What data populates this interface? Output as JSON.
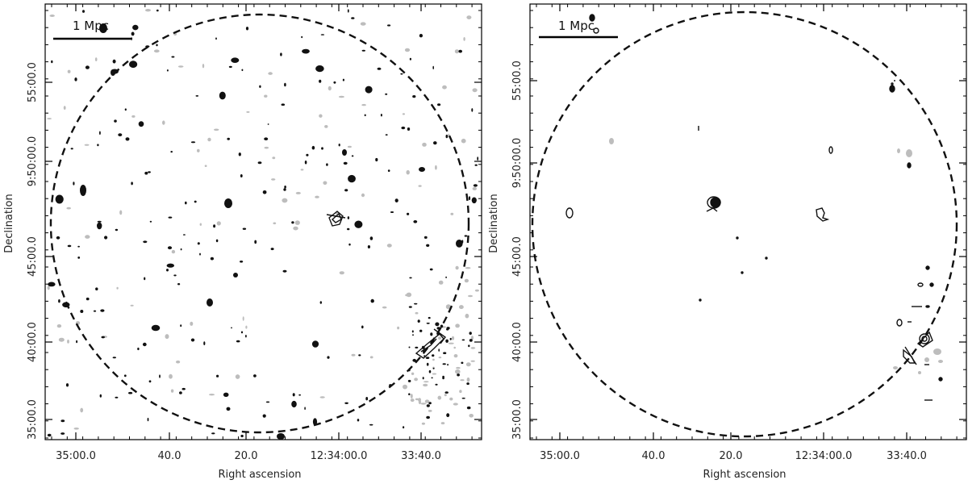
{
  "chart_data": [
    {
      "type": "scatter",
      "panel": "left",
      "title": "",
      "xlabel": "Right ascension",
      "ylabel": "Declination",
      "x_tick_labels": [
        "35:00.0",
        "40.0",
        "20.0",
        "12:34:00.0",
        "33:40.0"
      ],
      "y_tick_labels": [
        "55:00.0",
        "9:50:00.0",
        "45:00.0",
        "40:00.0",
        "35:00.0"
      ],
      "scale_bar": "1 Mpc",
      "circle": "dashed",
      "sources": {
        "black_contour_count": 220,
        "gray_contour_count": 140,
        "extended_black_sources": [
          {
            "ra": "12:34:02",
            "dec": "9:47:00",
            "kind": "extended"
          },
          {
            "ra": "12:33:34",
            "dec": "9:39:30",
            "kind": "extended"
          }
        ]
      }
    },
    {
      "type": "scatter",
      "panel": "right",
      "title": "",
      "xlabel": "Right ascension",
      "ylabel": "Declination",
      "x_tick_labels": [
        "35:00.0",
        "40.0",
        "20.0",
        "12:34:00.0",
        "33:40.0"
      ],
      "y_tick_labels": [
        "55:00.0",
        "9:50:00.0",
        "45:00.0",
        "40:00.0",
        "35:00.0"
      ],
      "scale_bar": "1 Mpc",
      "circle": "dashed",
      "sources": {
        "extended_black_sources": [
          {
            "ra": "12:34:00",
            "dec": "9:47:00",
            "kind": "extended"
          },
          {
            "ra": "12:34:26",
            "dec": "9:47:40",
            "kind": "compact"
          },
          {
            "ra": "12:33:32",
            "dec": "9:39:40",
            "kind": "extended"
          }
        ]
      }
    }
  ]
}
